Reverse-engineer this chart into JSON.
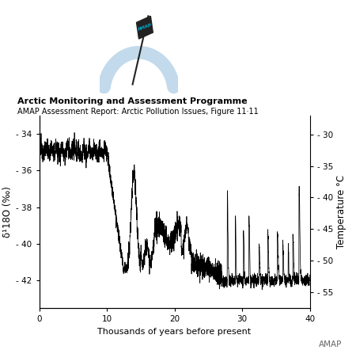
{
  "title_bold": "Arctic Monitoring and Assessment Programme",
  "title_normal": "AMAP Assessment Report: Arctic Pollution Issues, Figure 11·11",
  "ylabel_left": "δ¹18O (‰)",
  "ylabel_right": "Temperature °C",
  "xlabel": "Thousands of years before present",
  "xlim": [
    0,
    40
  ],
  "ylim_left": [
    -43.5,
    -33.0
  ],
  "ylim_right": [
    -57.5,
    -27.0
  ],
  "yticks_left": [
    -34,
    -36,
    -38,
    -40,
    -42
  ],
  "yticks_right": [
    -30,
    -35,
    -40,
    -45,
    -50,
    -55
  ],
  "xticks": [
    0,
    10,
    20,
    30,
    40
  ],
  "line_color": "#000000",
  "bg_color": "#ffffff",
  "watermark": "AMAP",
  "fig_width": 4.5,
  "fig_height": 4.42,
  "dpi": 100
}
